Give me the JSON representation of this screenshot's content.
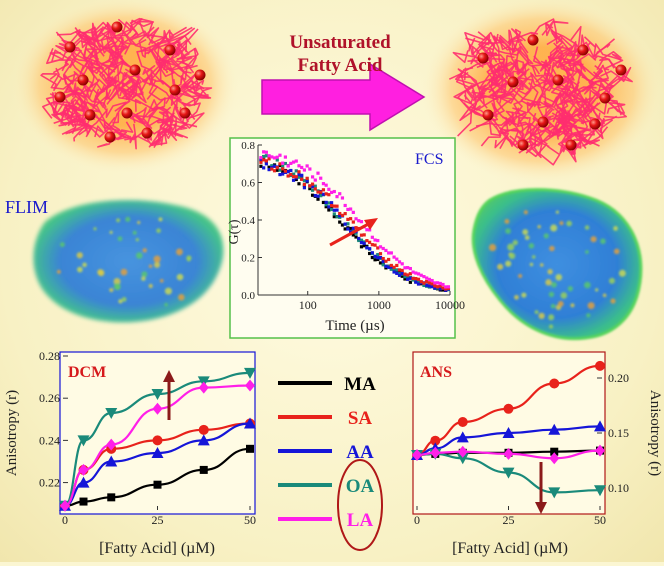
{
  "header": {
    "arrow_label": "Unsaturated\nFatty Acid",
    "arrow_line1": "Unsaturated",
    "arrow_line2": "Fatty Acid"
  },
  "labels": {
    "flim": "FLIM",
    "fcs": "FCS"
  },
  "colors": {
    "background": "#fbf6d2",
    "polymer": "#ff2d6f",
    "micelle_glow": "#ffb04a",
    "arrow": "#ff1fe0",
    "MA": "#000000",
    "SA": "#e8221b",
    "AA": "#1515d8",
    "OA": "#1a8a7a",
    "LA": "#ff1fe8"
  },
  "legend": [
    {
      "name": "MA",
      "color": "#000000"
    },
    {
      "name": "SA",
      "color": "#e8221b"
    },
    {
      "name": "AA",
      "color": "#1515d8"
    },
    {
      "name": "OA",
      "color": "#1a8a7a"
    },
    {
      "name": "LA",
      "color": "#ff1fe8"
    }
  ],
  "chart_data": [
    {
      "type": "scatter",
      "id": "fcs",
      "title": "FCS",
      "xlabel": "Time (µs)",
      "ylabel": "G(τ)",
      "xscale": "log",
      "xlim": [
        20,
        10000
      ],
      "ylim": [
        0,
        0.8
      ],
      "xticks": [
        100,
        1000,
        10000
      ],
      "xtick_labels": [
        "100",
        "1000",
        "10000"
      ],
      "yticks": [
        0.0,
        0.2,
        0.4,
        0.6,
        0.8
      ],
      "ytick_labels": [
        "0.0",
        "0.2",
        "0.4",
        "0.6",
        "0.8"
      ],
      "series": [
        {
          "color": "#000000",
          "tau_d": 320,
          "g0": 0.76
        },
        {
          "color": "#1a8a7a",
          "tau_d": 340,
          "g0": 0.77
        },
        {
          "color": "#1515d8",
          "tau_d": 360,
          "g0": 0.75
        },
        {
          "color": "#e8221b",
          "tau_d": 450,
          "g0": 0.74
        },
        {
          "color": "#ff1fe8",
          "tau_d": 560,
          "g0": 0.78
        }
      ],
      "grid": false
    },
    {
      "type": "line",
      "id": "dcm",
      "title": "DCM",
      "xlabel": "[Fatty Acid] (µM)",
      "ylabel": "Anisotropy (r)",
      "xlim": [
        0,
        50
      ],
      "ylim": [
        0.207,
        0.28
      ],
      "xticks": [
        0,
        25,
        50
      ],
      "xtick_labels": [
        "0",
        "25",
        "50"
      ],
      "yticks": [
        0.22,
        0.24,
        0.26,
        0.28
      ],
      "ytick_labels": [
        "0.22",
        "0.24",
        "0.26",
        "0.28"
      ],
      "annotation": "arrow-up",
      "series": [
        {
          "name": "MA",
          "color": "#000000",
          "marker": "square",
          "x": [
            0,
            5,
            12.5,
            25,
            37.5,
            50
          ],
          "y": [
            0.209,
            0.211,
            0.213,
            0.219,
            0.226,
            0.236
          ]
        },
        {
          "name": "SA",
          "color": "#e8221b",
          "marker": "circle",
          "x": [
            0,
            5,
            12.5,
            25,
            37.5,
            50
          ],
          "y": [
            0.209,
            0.226,
            0.236,
            0.24,
            0.245,
            0.248
          ]
        },
        {
          "name": "AA",
          "color": "#1515d8",
          "marker": "triangle-up",
          "x": [
            0,
            5,
            12.5,
            25,
            37.5,
            50
          ],
          "y": [
            0.209,
            0.22,
            0.23,
            0.234,
            0.24,
            0.248
          ]
        },
        {
          "name": "OA",
          "color": "#1a8a7a",
          "marker": "triangle-down",
          "x": [
            0,
            5,
            12.5,
            25,
            37.5,
            50
          ],
          "y": [
            0.209,
            0.24,
            0.253,
            0.262,
            0.268,
            0.272
          ]
        },
        {
          "name": "LA",
          "color": "#ff1fe8",
          "marker": "diamond",
          "x": [
            0,
            5,
            12.5,
            25,
            37.5,
            50
          ],
          "y": [
            0.209,
            0.226,
            0.238,
            0.255,
            0.265,
            0.266
          ]
        }
      ]
    },
    {
      "type": "line",
      "id": "ans",
      "title": "ANS",
      "xlabel": "[Fatty Acid] (µM)",
      "ylabel": "Anisotropy (r)",
      "xlim": [
        0,
        50
      ],
      "ylim": [
        0.08,
        0.22
      ],
      "xticks": [
        0,
        25,
        50
      ],
      "xtick_labels": [
        "0",
        "25",
        "50"
      ],
      "yticks": [
        0.1,
        0.15,
        0.2
      ],
      "ytick_labels": [
        "0.10",
        "0.15",
        "0.20"
      ],
      "annotation": "arrow-down",
      "series": [
        {
          "name": "MA",
          "color": "#000000",
          "marker": "square",
          "x": [
            0,
            5,
            12.5,
            25,
            37.5,
            50
          ],
          "y": [
            0.13,
            0.131,
            0.132,
            0.132,
            0.133,
            0.134
          ]
        },
        {
          "name": "SA",
          "color": "#e8221b",
          "marker": "circle",
          "x": [
            0,
            5,
            12.5,
            25,
            37.5,
            50
          ],
          "y": [
            0.13,
            0.143,
            0.16,
            0.172,
            0.195,
            0.211
          ]
        },
        {
          "name": "AA",
          "color": "#1515d8",
          "marker": "triangle-up",
          "x": [
            0,
            5,
            12.5,
            25,
            37.5,
            50
          ],
          "y": [
            0.13,
            0.136,
            0.146,
            0.15,
            0.153,
            0.156
          ]
        },
        {
          "name": "OA",
          "color": "#1a8a7a",
          "marker": "triangle-down",
          "x": [
            0,
            5,
            12.5,
            25,
            37.5,
            50
          ],
          "y": [
            0.13,
            0.131,
            0.127,
            0.114,
            0.096,
            0.098
          ]
        },
        {
          "name": "LA",
          "color": "#ff1fe8",
          "marker": "diamond",
          "x": [
            0,
            5,
            12.5,
            25,
            37.5,
            50
          ],
          "y": [
            0.13,
            0.132,
            0.133,
            0.131,
            0.127,
            0.134
          ]
        }
      ]
    }
  ]
}
